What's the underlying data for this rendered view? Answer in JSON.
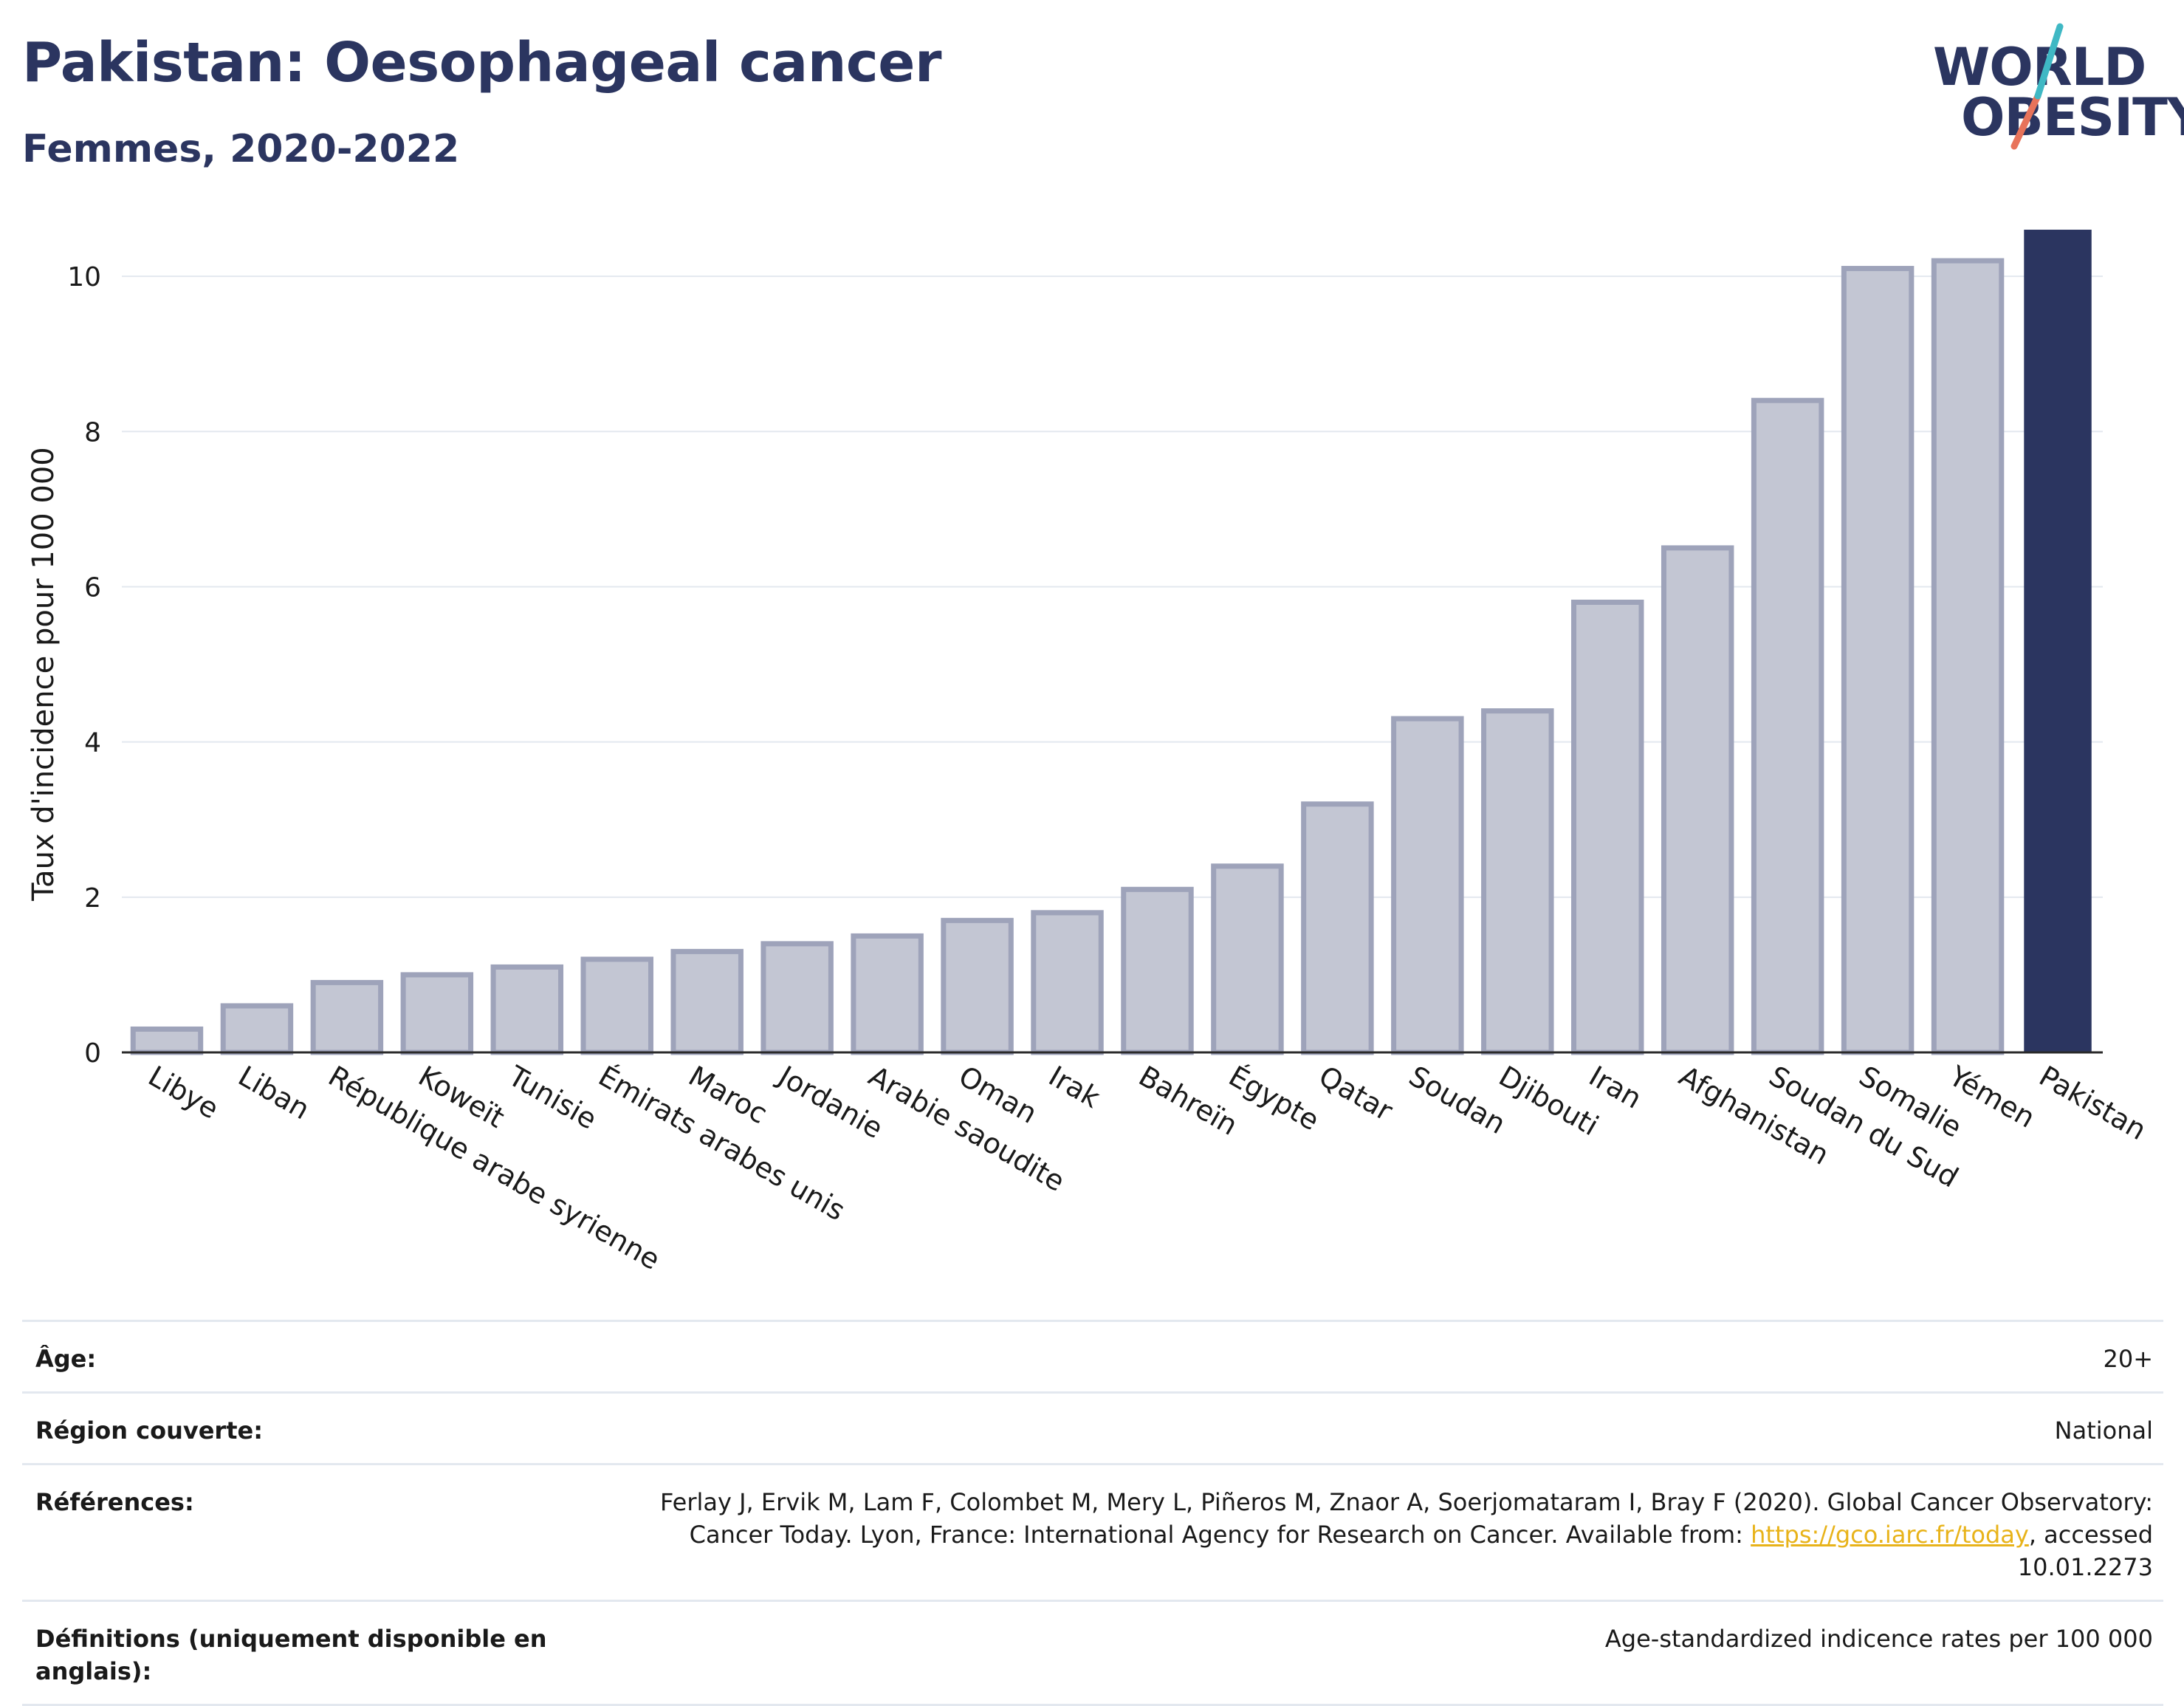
{
  "header": {
    "title": "Pakistan: Oesophageal cancer",
    "subtitle": "Femmes, 2020-2022"
  },
  "logo": {
    "line1": "WORLD",
    "line2": "OBESITY",
    "accent_colors": [
      "#3fb8c4",
      "#e8735a"
    ]
  },
  "colors": {
    "highlight_bar": "#2b3560",
    "other_bar_fill": "#c3c6d3",
    "other_bar_stroke": "#9ea3ba",
    "grid": "#e3e8ef",
    "text_dark": "#2b3560"
  },
  "chart_data": {
    "type": "bar",
    "title": "Pakistan: Oesophageal cancer",
    "subtitle": "Femmes, 2020-2022",
    "xlabel": "",
    "ylabel": "Taux d'incidence pour 100 000",
    "ylim": [
      0,
      10.8
    ],
    "yticks": [
      0,
      2,
      4,
      6,
      8,
      10
    ],
    "grid": true,
    "highlight": "Pakistan",
    "categories": [
      "Libye",
      "Liban",
      "République arabe syrienne",
      "Koweït",
      "Tunisie",
      "Émirats arabes unis",
      "Maroc",
      "Jordanie",
      "Arabie saoudite",
      "Oman",
      "Irak",
      "Bahreïn",
      "Égypte",
      "Qatar",
      "Soudan",
      "Djibouti",
      "Iran",
      "Afghanistan",
      "Soudan du Sud",
      "Somalie",
      "Yémen",
      "Pakistan"
    ],
    "values": [
      0.3,
      0.6,
      0.9,
      1.0,
      1.1,
      1.2,
      1.3,
      1.4,
      1.5,
      1.7,
      1.8,
      2.1,
      2.4,
      3.2,
      4.3,
      4.4,
      5.8,
      6.5,
      8.4,
      10.1,
      10.2,
      10.6
    ]
  },
  "info": {
    "age_label": "Âge:",
    "age_value": "20+",
    "region_label": "Région couverte:",
    "region_value": "National",
    "refs_label": "Références:",
    "refs_text_1": "Ferlay J, Ervik M, Lam F, Colombet M, Mery L, Piñeros M, Znaor A, Soerjomataram I, Bray F (2020). Global Cancer Observatory: Cancer Today. Lyon, France: International Agency for Research on Cancer. Available from: ",
    "refs_link": "https://gco.iarc.fr/today",
    "refs_text_2": ", accessed 10.01.2273",
    "defs_label": "Définitions (uniquement disponible en anglais):",
    "defs_value": "Age-standardized indicence rates per 100 000"
  }
}
